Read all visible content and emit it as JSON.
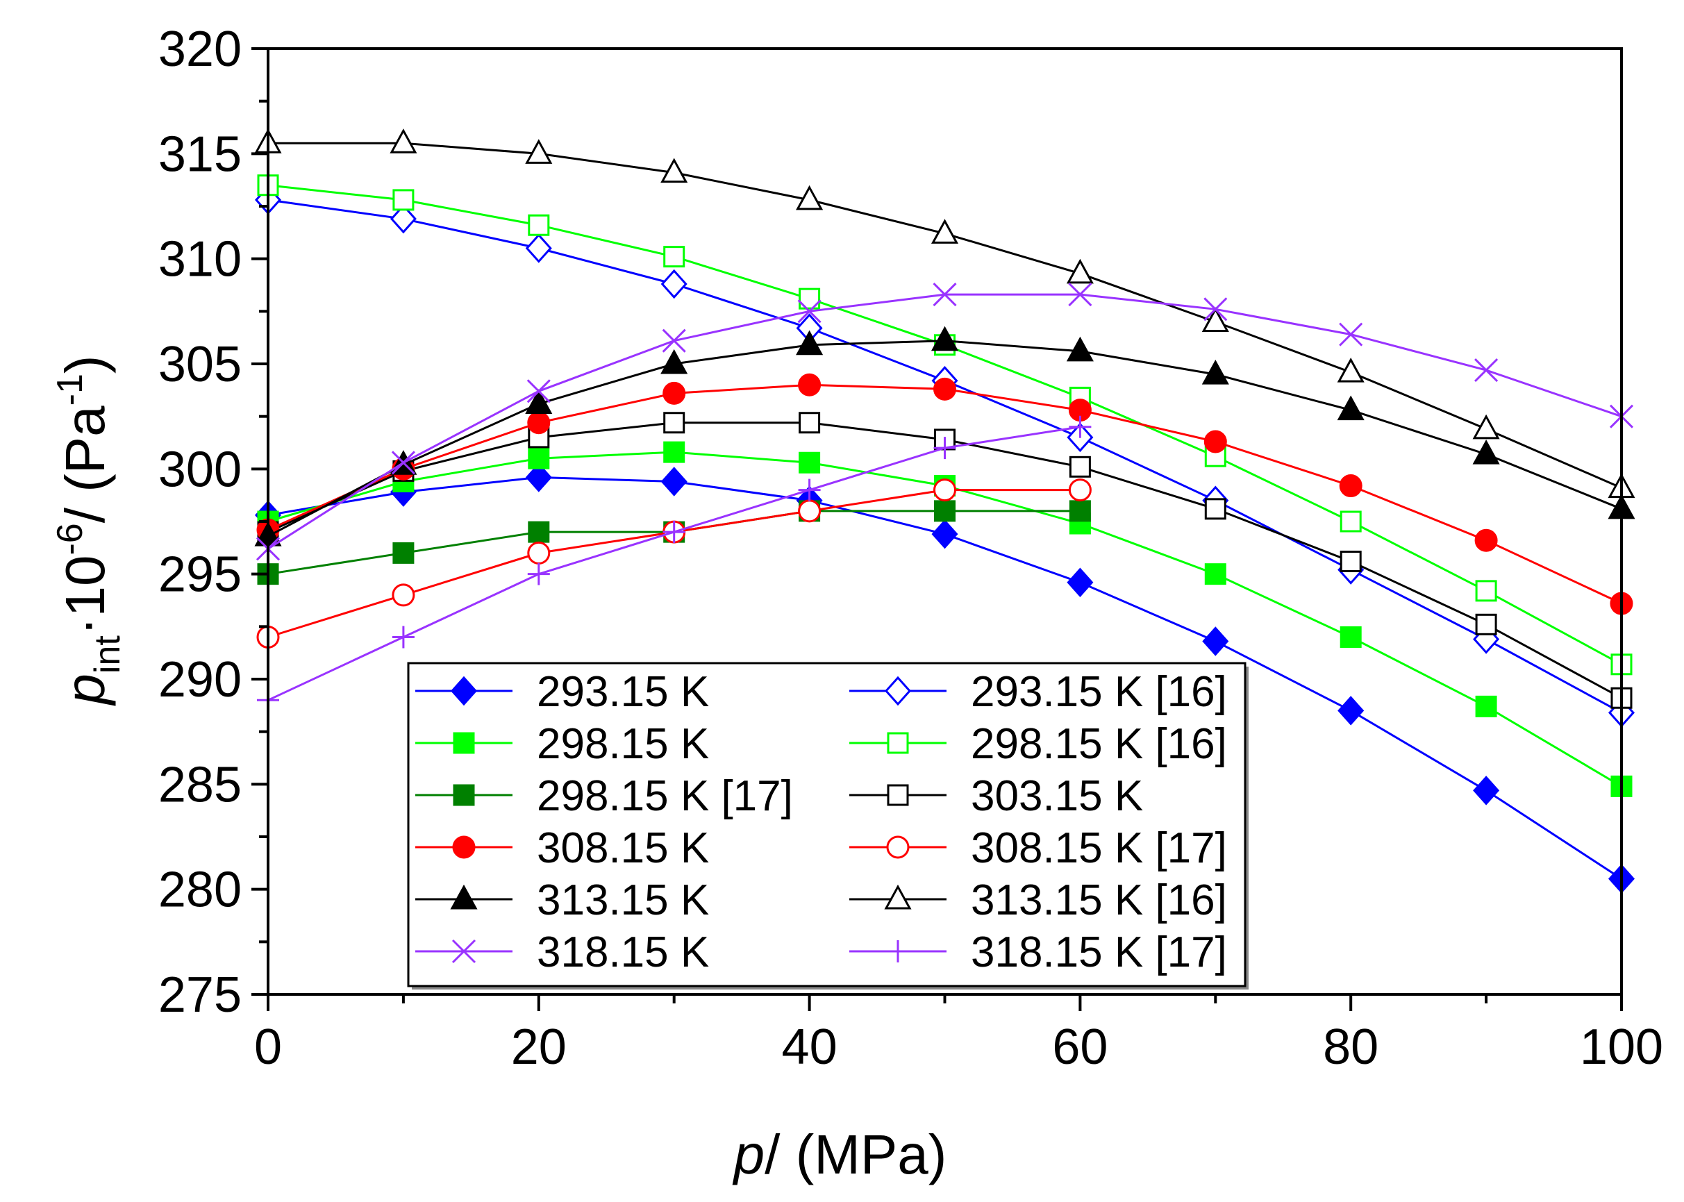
{
  "chart_data": {
    "type": "line",
    "xlabel_var": "p",
    "xlabel_rest": "/ (MPa)",
    "ylabel_var": "p",
    "ylabel_sub": "int",
    "ylabel_mid": "·10",
    "ylabel_exp": "-6",
    "ylabel_unit_open": "/ (Pa",
    "ylabel_unit_exp": "-1",
    "ylabel_unit_close": ")",
    "xlim": [
      0,
      100
    ],
    "ylim": [
      275,
      320
    ],
    "xticks": [
      0,
      20,
      40,
      60,
      80,
      100
    ],
    "yticks": [
      275,
      280,
      285,
      290,
      295,
      300,
      305,
      310,
      315,
      320
    ],
    "legend_position": "bottom-left",
    "series": [
      {
        "name": "293.15 K",
        "color": "#0000ff",
        "marker": "diamond",
        "filled": true,
        "x": [
          0,
          10,
          20,
          30,
          40,
          50,
          60,
          70,
          80,
          90,
          100
        ],
        "y": [
          297.8,
          298.9,
          299.6,
          299.4,
          298.5,
          296.9,
          294.6,
          291.8,
          288.5,
          284.7,
          280.5
        ]
      },
      {
        "name": "293.15 K [16]",
        "color": "#0000ff",
        "marker": "diamond",
        "filled": false,
        "x": [
          0,
          10,
          20,
          30,
          40,
          50,
          60,
          70,
          80,
          90,
          100
        ],
        "y": [
          312.8,
          311.9,
          310.5,
          308.8,
          306.7,
          304.2,
          301.5,
          298.5,
          295.2,
          291.9,
          288.4
        ]
      },
      {
        "name": "298.15 K",
        "color": "#00ff00",
        "marker": "square",
        "filled": true,
        "x": [
          0,
          10,
          20,
          30,
          40,
          50,
          60,
          70,
          80,
          90,
          100
        ],
        "y": [
          297.5,
          299.4,
          300.5,
          300.8,
          300.3,
          299.2,
          297.4,
          295.0,
          292.0,
          288.7,
          284.9
        ]
      },
      {
        "name": "298.15 K [16]",
        "color": "#00ff00",
        "marker": "square",
        "filled": false,
        "x": [
          0,
          10,
          20,
          30,
          40,
          50,
          60,
          70,
          80,
          90,
          100
        ],
        "y": [
          313.5,
          312.8,
          311.6,
          310.1,
          308.1,
          305.9,
          303.4,
          300.6,
          297.5,
          294.2,
          290.7
        ]
      },
      {
        "name": "298.15 K [17]",
        "color": "#008000",
        "marker": "square",
        "filled": true,
        "x": [
          0,
          10,
          20,
          30,
          40,
          50,
          60
        ],
        "y": [
          295,
          296,
          297,
          297,
          298,
          298,
          298
        ]
      },
      {
        "name": "303.15 K",
        "color": "#000000",
        "marker": "square",
        "filled": false,
        "x": [
          0,
          10,
          20,
          30,
          40,
          50,
          60,
          70,
          80,
          90,
          100
        ],
        "y": [
          297.0,
          299.9,
          301.5,
          302.2,
          302.2,
          301.4,
          300.1,
          298.1,
          295.6,
          292.6,
          289.1
        ]
      },
      {
        "name": "308.15 K",
        "color": "#ff0000",
        "marker": "circle",
        "filled": true,
        "x": [
          0,
          10,
          20,
          30,
          40,
          50,
          60,
          70,
          80,
          90,
          100
        ],
        "y": [
          297.1,
          300.0,
          302.2,
          303.6,
          304.0,
          303.8,
          302.8,
          301.3,
          299.2,
          296.6,
          293.6
        ]
      },
      {
        "name": "308.15 K [17]",
        "color": "#ff0000",
        "marker": "circle",
        "filled": false,
        "x": [
          0,
          10,
          20,
          30,
          40,
          50,
          60
        ],
        "y": [
          292,
          294,
          296,
          297,
          298,
          299,
          299
        ]
      },
      {
        "name": "313.15 K",
        "color": "#000000",
        "marker": "triangle",
        "filled": true,
        "x": [
          0,
          10,
          20,
          30,
          40,
          50,
          60,
          70,
          80,
          90,
          100
        ],
        "y": [
          296.8,
          300.2,
          303.1,
          305.0,
          305.9,
          306.1,
          305.6,
          304.5,
          302.8,
          300.7,
          298.1
        ]
      },
      {
        "name": "313.15 K [16]",
        "color": "#000000",
        "marker": "triangle",
        "filled": false,
        "x": [
          0,
          10,
          20,
          30,
          40,
          50,
          60,
          70,
          80,
          90,
          100
        ],
        "y": [
          315.5,
          315.5,
          315.0,
          314.1,
          312.8,
          311.2,
          309.3,
          307.0,
          304.6,
          301.9,
          299.1
        ]
      },
      {
        "name": "318.15 K",
        "color": "#9933ff",
        "marker": "x",
        "filled": false,
        "x": [
          0,
          10,
          20,
          30,
          40,
          50,
          60,
          70,
          80,
          90,
          100
        ],
        "y": [
          296.2,
          300.3,
          303.7,
          306.1,
          307.5,
          308.3,
          308.3,
          307.6,
          306.4,
          304.7,
          302.5
        ]
      },
      {
        "name": "318.15 K [17]",
        "color": "#9933ff",
        "marker": "plus",
        "filled": false,
        "x": [
          0,
          10,
          20,
          30,
          40,
          50,
          60
        ],
        "y": [
          289,
          292,
          295,
          297,
          299,
          301,
          302
        ]
      }
    ],
    "legend_order": [
      0,
      1,
      2,
      3,
      4,
      5,
      6,
      7,
      8,
      9,
      10,
      11
    ]
  }
}
